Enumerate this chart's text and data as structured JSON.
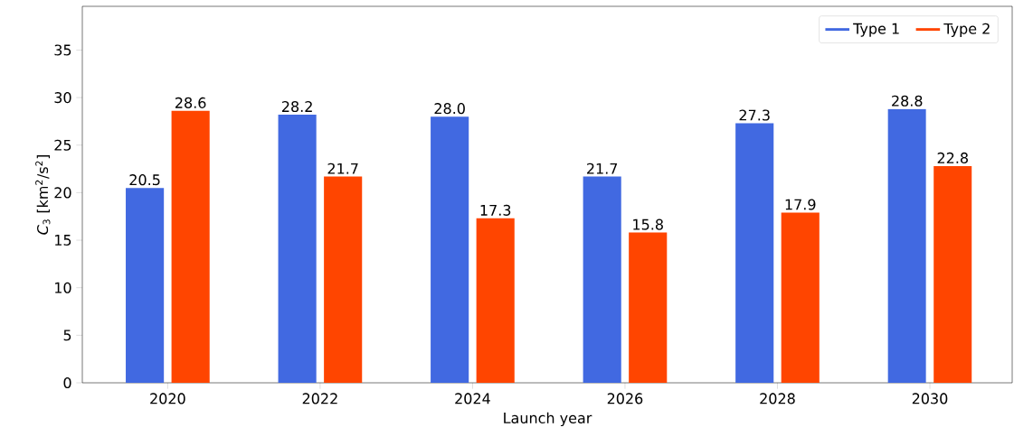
{
  "chart_data": {
    "type": "bar",
    "xlabel": "Launch year",
    "ylabel": "*C*$_{3}$ [km$^{2}$/s$^{2}$]",
    "categories": [
      "2020",
      "2022",
      "2024",
      "2026",
      "2028",
      "2030"
    ],
    "series": [
      {
        "name": "Type 1",
        "color": "#4169e1",
        "values": [
          20.5,
          28.2,
          28.0,
          21.7,
          27.3,
          28.8
        ],
        "value_labels": [
          "20.5",
          "28.2",
          "28.0",
          "21.7",
          "27.3",
          "28.8"
        ]
      },
      {
        "name": "Type 2",
        "color": "#ff4500",
        "values": [
          28.6,
          21.7,
          17.3,
          15.8,
          17.9,
          22.8
        ],
        "value_labels": [
          "28.6",
          "21.7",
          "17.3",
          "15.8",
          "17.9",
          "22.8"
        ]
      }
    ],
    "ylim": [
      0,
      39.6
    ],
    "yticks": [
      0,
      5,
      10,
      15,
      20,
      25,
      30,
      35
    ],
    "legend": "top right",
    "grid": false
  }
}
